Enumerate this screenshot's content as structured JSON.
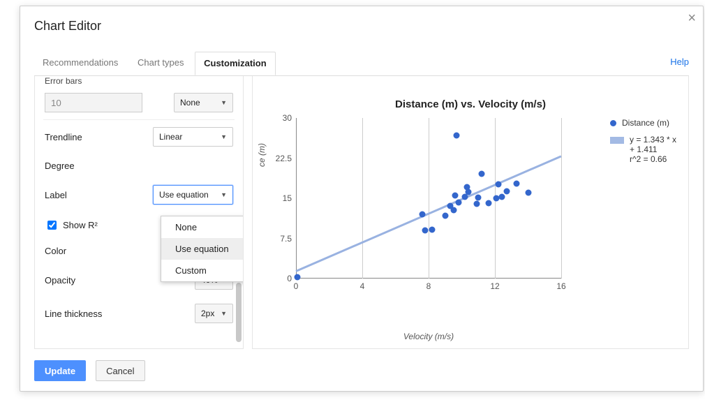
{
  "dialog": {
    "title": "Chart Editor",
    "tabs": [
      "Recommendations",
      "Chart types",
      "Customization"
    ],
    "active_tab": 2,
    "help_label": "Help",
    "close_glyph": "×"
  },
  "panel": {
    "errorbars_label_truncated": "Error bars",
    "errorbars_value": "10",
    "errorbars_type": "None",
    "trendline_label": "Trendline",
    "trendline_type": "Linear",
    "degree_label": "Degree",
    "label_label": "Label",
    "label_value": "Use equation",
    "label_options": [
      "None",
      "Use equation",
      "Custom"
    ],
    "label_selected_index": 1,
    "show_r2_label": "Show R²",
    "show_r2_checked": true,
    "color_label": "Color",
    "opacity_label": "Opacity",
    "opacity_value": "40%",
    "line_thickness_label": "Line thickness",
    "line_thickness_value": "2px"
  },
  "chart": {
    "title": "Distance (m) vs. Velocity (m/s)",
    "xlabel": "Velocity (m/s)",
    "ylabel_fragment": "ce (m)",
    "legend_series": "Distance (m)",
    "legend_trend_line1": "y = 1.343 * x + 1.411",
    "legend_trend_line2": "r^2 = 0.66",
    "xlim": [
      0,
      16
    ],
    "xticks": [
      0,
      4,
      8,
      12,
      16
    ],
    "ylim": [
      0,
      30
    ],
    "yticks": [
      0,
      7.5,
      15,
      22.5,
      30
    ],
    "grid_color": "#cccccc",
    "axis_color": "#888888",
    "point_color": "#3366cc",
    "trend_color": "#99b2e1",
    "points": [
      [
        0.1,
        0.2
      ],
      [
        7.6,
        12.0
      ],
      [
        7.8,
        9.0
      ],
      [
        8.2,
        9.1
      ],
      [
        9.0,
        11.8
      ],
      [
        9.3,
        13.6
      ],
      [
        9.5,
        12.8
      ],
      [
        9.6,
        15.5
      ],
      [
        9.7,
        26.7
      ],
      [
        9.8,
        14.2
      ],
      [
        10.2,
        15.3
      ],
      [
        10.3,
        17.1
      ],
      [
        10.4,
        16.2
      ],
      [
        10.9,
        14.0
      ],
      [
        11.0,
        15.1
      ],
      [
        11.2,
        19.6
      ],
      [
        11.6,
        14.1
      ],
      [
        12.1,
        15.0
      ],
      [
        12.2,
        17.6
      ],
      [
        12.4,
        15.2
      ],
      [
        12.7,
        16.3
      ],
      [
        13.3,
        17.8
      ],
      [
        14.0,
        16.1
      ]
    ],
    "trend": {
      "slope": 1.343,
      "intercept": 1.411
    }
  },
  "footer": {
    "update": "Update",
    "cancel": "Cancel"
  }
}
